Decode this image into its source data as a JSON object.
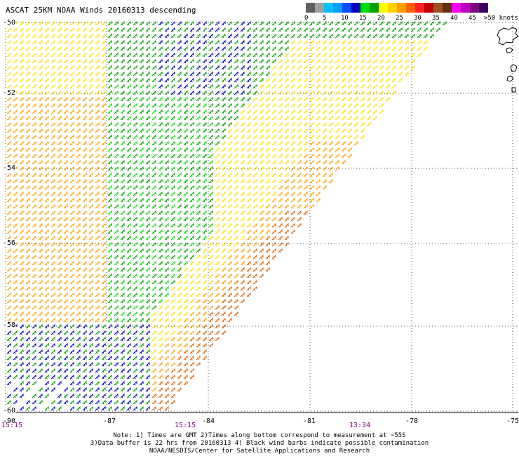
{
  "title": "ASCAT 25KM NOAA Winds 20160313 descending",
  "legend": {
    "units_label": ">50 knots",
    "ticks": [
      "0",
      "5",
      "10",
      "15",
      "20",
      "25",
      "30",
      "35",
      "40",
      "45"
    ],
    "colors": [
      "#606060",
      "#a0a0a0",
      "#00c0ff",
      "#00a0ff",
      "#0050ff",
      "#0000c0",
      "#00e000",
      "#00a000",
      "#ffff00",
      "#ffd000",
      "#ffa000",
      "#ff6000",
      "#ff2020",
      "#c00000",
      "#a05020",
      "#603010",
      "#ff00ff",
      "#c000c0",
      "#800080",
      "#400060"
    ]
  },
  "axes": {
    "lat_labels": [
      "-50",
      "-52",
      "-54",
      "-56",
      "-58",
      "-60"
    ],
    "lon_labels": [
      "-90",
      "-87",
      "-84",
      "-81",
      "-78",
      "-75"
    ],
    "time_labels": [
      "15:15",
      "15:15",
      "13:34"
    ]
  },
  "notes": [
    "Note: 1) Times are GMT 2)Times along bottom correspond to measurement at ~55S",
    "3)Data buffer is 22 hrs from 20160313 4) Black wind barbs indicate possible contamination",
    "NOAA/NESDIS/Center for Satellite Applications and Research"
  ]
}
